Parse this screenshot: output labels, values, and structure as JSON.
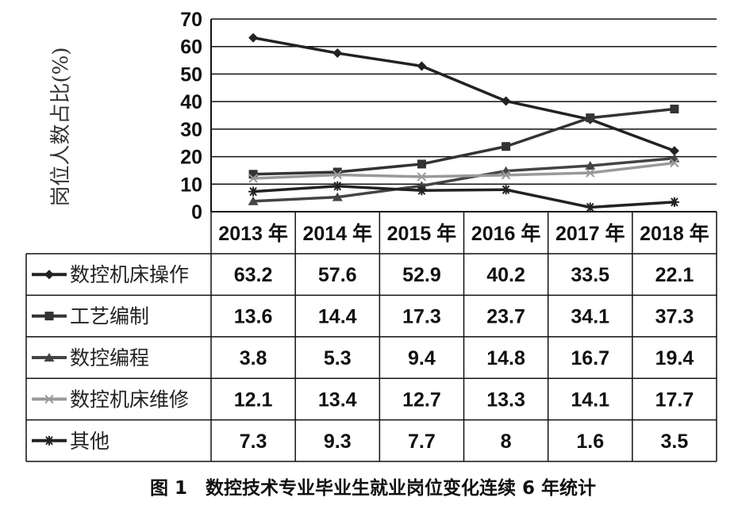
{
  "chart_data": {
    "type": "line",
    "title": "图 1　数控技术专业毕业生就业岗位变化连续 6 年统计",
    "xlabel": "",
    "ylabel": "岗位人数占比(%)",
    "ylim": [
      0,
      70
    ],
    "yticks": [
      0,
      10,
      20,
      30,
      40,
      50,
      60,
      70
    ],
    "grid": true,
    "legend_position": "bottom-left (data table)",
    "categories": [
      "2013 年",
      "2014 年",
      "2015 年",
      "2016 年",
      "2017 年",
      "2018 年"
    ],
    "series": [
      {
        "name": "数控机床操作",
        "marker": "diamond",
        "color": "#222222",
        "values": [
          63.2,
          57.6,
          52.9,
          40.2,
          33.5,
          22.1
        ],
        "labels": [
          "63.2",
          "57.6",
          "52.9",
          "40.2",
          "33.5",
          "22.1"
        ]
      },
      {
        "name": "工艺编制",
        "marker": "square",
        "color": "#333333",
        "values": [
          13.6,
          14.4,
          17.3,
          23.7,
          34.1,
          37.3
        ],
        "labels": [
          "13.6",
          "14.4",
          "17.3",
          "23.7",
          "34.1",
          "37.3"
        ]
      },
      {
        "name": "数控编程",
        "marker": "triangle",
        "color": "#444444",
        "values": [
          3.8,
          5.3,
          9.4,
          14.8,
          16.7,
          19.4
        ],
        "labels": [
          "3.8",
          "5.3",
          "9.4",
          "14.8",
          "16.7",
          "19.4"
        ]
      },
      {
        "name": "数控机床维修",
        "marker": "x",
        "color": "#999999",
        "values": [
          12.1,
          13.4,
          12.7,
          13.3,
          14.1,
          17.7
        ],
        "labels": [
          "12.1",
          "13.4",
          "12.7",
          "13.3",
          "14.1",
          "17.7"
        ]
      },
      {
        "name": "其他",
        "marker": "star",
        "color": "#222222",
        "values": [
          7.3,
          9.3,
          7.7,
          8,
          1.6,
          3.5
        ],
        "labels": [
          "7.3",
          "9.3",
          "7.7",
          "8",
          "1.6",
          "3.5"
        ]
      }
    ]
  }
}
